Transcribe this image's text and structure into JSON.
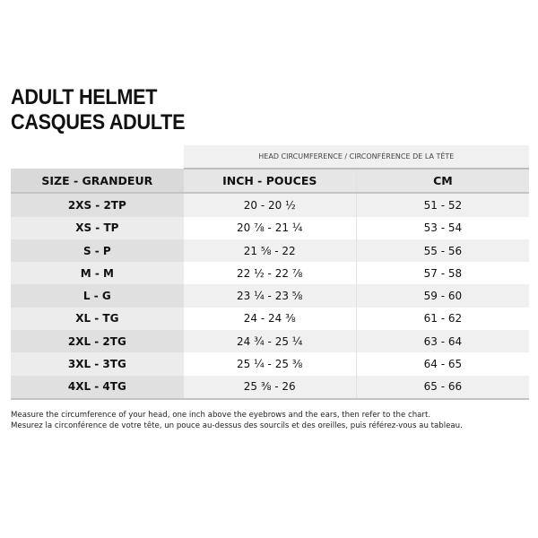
{
  "title": {
    "line1": "ADULT HELMET",
    "line2": "CASQUES ADULTE"
  },
  "table": {
    "group_header": "HEAD CIRCUMFERENCE / CIRCONFÉRENCE DE LA TÊTE",
    "columns": [
      "SIZE - GRANDEUR",
      "INCH - POUCES",
      "CM"
    ],
    "rows": [
      [
        "2XS - 2TP",
        "20 - 20 ½",
        "51 - 52"
      ],
      [
        "XS - TP",
        "20 ⅞ - 21 ¼",
        "53 - 54"
      ],
      [
        "S - P",
        "21 ⅝ - 22",
        "55 - 56"
      ],
      [
        "M - M",
        "22 ½ - 22 ⅞",
        "57 - 58"
      ],
      [
        "L - G",
        "23 ¼ - 23 ⅝",
        "59 - 60"
      ],
      [
        "XL - TG",
        "24 - 24 ⅜",
        "61 - 62"
      ],
      [
        "2XL - 2TG",
        "24 ¾ - 25 ¼",
        "63 - 64"
      ],
      [
        "3XL - 3TG",
        "25 ¼ - 25 ⅜",
        "64 - 65"
      ],
      [
        "4XL - 4TG",
        "25 ⅜ - 26",
        "65 - 66"
      ]
    ]
  },
  "notes": {
    "en": "Measure the circumference of your head, one inch above the eyebrows and the ears, then refer to the chart.",
    "fr": "Mesurez la circonférence de votre tête, un pouce au-dessus des sourcils et des oreilles, puis référez-vous au tableau."
  }
}
